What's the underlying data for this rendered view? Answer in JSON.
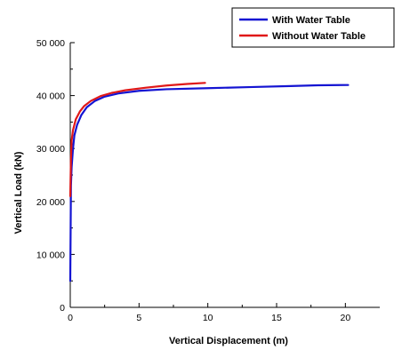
{
  "chart_data": {
    "type": "line",
    "title": "",
    "xlabel": "Vertical Displacement (m)",
    "ylabel": "Vertical Load (kN)",
    "xlim": [
      0,
      22.5
    ],
    "ylim": [
      0,
      50000
    ],
    "xticks": [
      0,
      5,
      10,
      15,
      20
    ],
    "xtick_labels": [
      "0",
      "5",
      "10",
      "15",
      "20"
    ],
    "yticks": [
      0,
      10000,
      20000,
      30000,
      40000,
      50000
    ],
    "ytick_labels": [
      "0",
      "10 000",
      "20 000",
      "30 000",
      "40 000",
      "50 000"
    ],
    "grid": false,
    "legend_position": "top-right",
    "series": [
      {
        "name": "With Water Table",
        "color": "#1414d2",
        "x": [
          0,
          0.05,
          0.1,
          0.2,
          0.3,
          0.5,
          0.8,
          1.2,
          1.8,
          2.5,
          3.5,
          5,
          7,
          10,
          13,
          16,
          18,
          20.2
        ],
        "y": [
          5000,
          23000,
          26500,
          30000,
          32500,
          34500,
          36300,
          37800,
          39000,
          39800,
          40400,
          40900,
          41200,
          41400,
          41600,
          41800,
          41950,
          42000
        ]
      },
      {
        "name": "Without Water Table",
        "color": "#e01818",
        "x": [
          0,
          0.05,
          0.1,
          0.2,
          0.4,
          0.7,
          1.0,
          1.5,
          2.2,
          3.0,
          4.0,
          5.5,
          7.0,
          8.5,
          9.8
        ],
        "y": [
          21000,
          28000,
          31500,
          33500,
          35500,
          37000,
          38000,
          39000,
          39900,
          40500,
          41000,
          41500,
          41900,
          42200,
          42400
        ]
      }
    ]
  }
}
